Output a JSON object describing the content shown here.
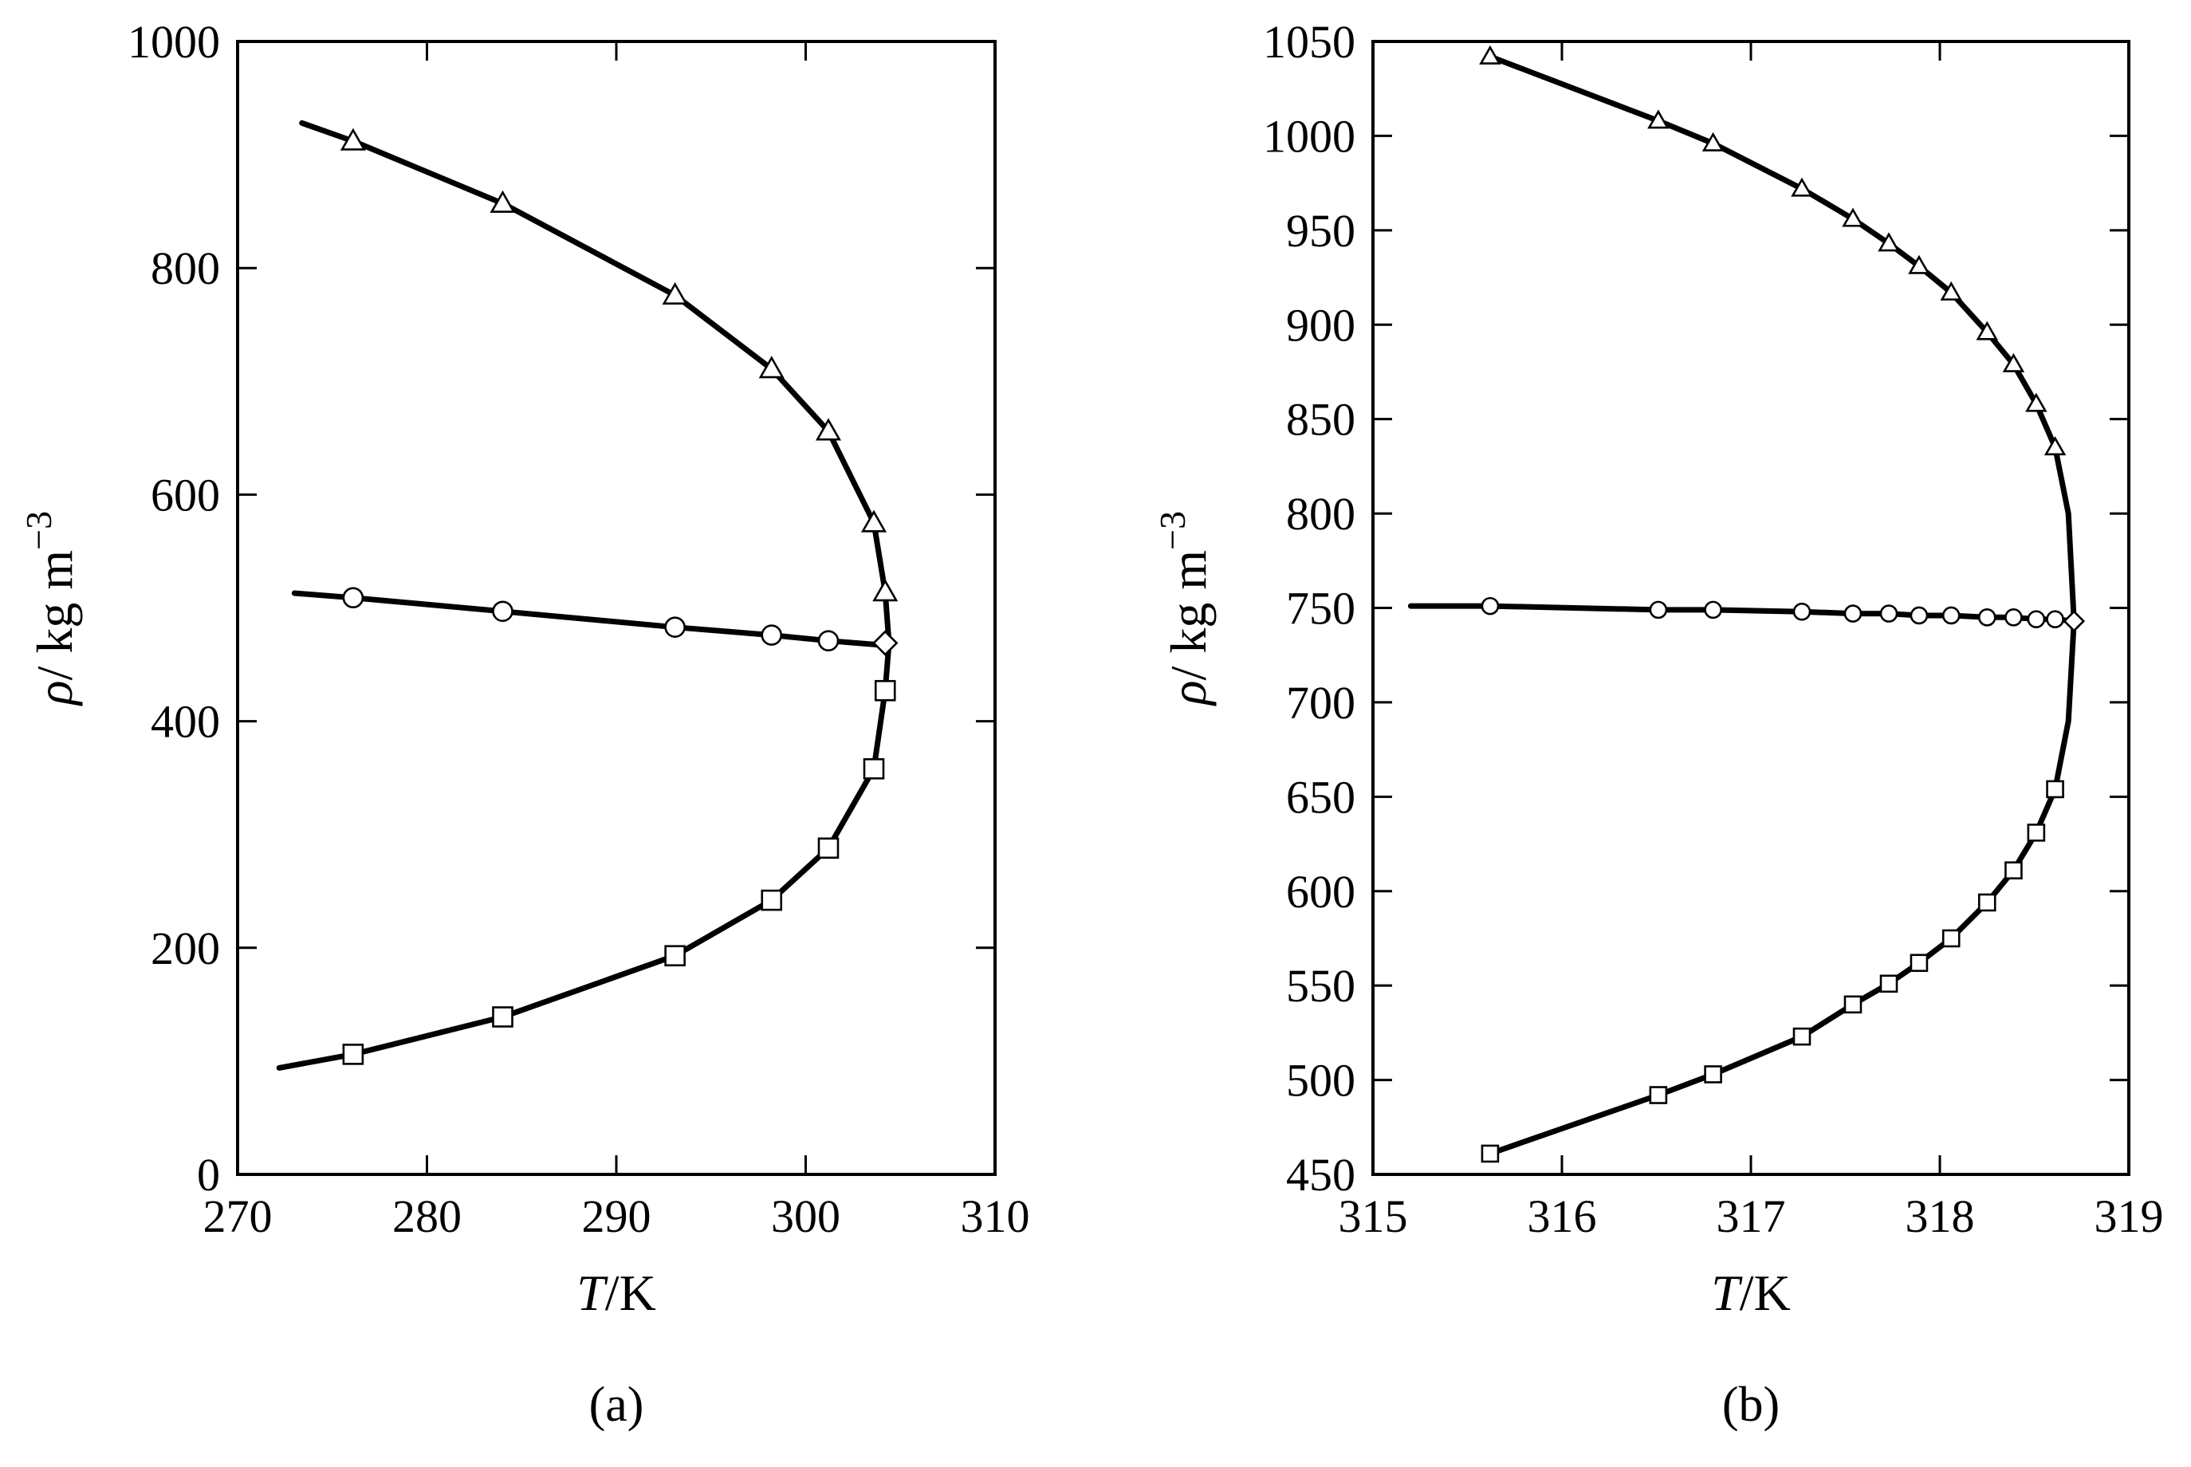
{
  "chart_data": [
    {
      "type": "line",
      "panel_label": "(a)",
      "xlabel_var": "T",
      "xlabel_unit": "K",
      "ylabel_var": "ρ",
      "ylabel_unit": "kg m",
      "ylabel_exp": "−3",
      "xlim": [
        270,
        310
      ],
      "ylim": [
        0,
        1000
      ],
      "xticks": [
        270,
        280,
        290,
        300,
        310
      ],
      "yticks": [
        0,
        200,
        400,
        600,
        800,
        1000
      ],
      "xtick_labels": [
        "270",
        "280",
        "290",
        "300",
        "310"
      ],
      "ytick_labels": [
        "0",
        "200",
        "400",
        "600",
        "800",
        "1000"
      ],
      "grid": false,
      "series": [
        {
          "marker": "triangle",
          "x": [
            276.1,
            284.0,
            293.1,
            298.2,
            301.2,
            303.6,
            304.2
          ],
          "y": [
            912,
            857,
            776,
            711,
            656,
            575,
            514
          ]
        },
        {
          "marker": "circle",
          "x": [
            276.1,
            284.0,
            293.1,
            298.2,
            301.2
          ],
          "y": [
            509,
            497,
            483,
            476,
            471
          ]
        },
        {
          "marker": "square",
          "x": [
            276.1,
            284.0,
            293.1,
            298.2,
            301.2,
            303.6,
            304.2
          ],
          "y": [
            106,
            139,
            193,
            242,
            288,
            358,
            427
          ]
        },
        {
          "marker": "diamond",
          "x": [
            304.2
          ],
          "y": [
            469
          ]
        }
      ],
      "curves": [
        {
          "x": [
            273.4,
            276.1,
            284.0,
            293.1,
            298.2,
            301.2,
            303.6,
            304.2,
            304.4,
            304.2,
            303.6,
            301.2,
            298.2,
            293.1,
            284.0,
            276.1,
            272.2
          ],
          "y": [
            928,
            912,
            857,
            776,
            711,
            656,
            575,
            514,
            469,
            427,
            358,
            288,
            242,
            193,
            139,
            106,
            94
          ]
        },
        {
          "x": [
            273.0,
            276.1,
            284.0,
            293.1,
            298.2,
            301.2,
            304.2
          ],
          "y": [
            513,
            509,
            497,
            483,
            476,
            471,
            467
          ]
        }
      ]
    },
    {
      "type": "line",
      "panel_label": "(b)",
      "xlabel_var": "T",
      "xlabel_unit": "K",
      "ylabel_var": "ρ",
      "ylabel_unit": "kg m",
      "ylabel_exp": "−3",
      "xlim": [
        315,
        319
      ],
      "ylim": [
        450,
        1050
      ],
      "xticks": [
        315,
        316,
        317,
        318,
        319
      ],
      "yticks": [
        450,
        500,
        550,
        600,
        650,
        700,
        750,
        800,
        850,
        900,
        950,
        1000,
        1050
      ],
      "xtick_labels": [
        "315",
        "316",
        "317",
        "318",
        "319"
      ],
      "ytick_labels": [
        "450",
        "500",
        "550",
        "600",
        "650",
        "700",
        "750",
        "800",
        "850",
        "900",
        "950",
        "1000",
        "1050"
      ],
      "grid": false,
      "series": [
        {
          "marker": "triangle",
          "x": [
            315.62,
            316.51,
            316.8,
            317.27,
            317.54,
            317.73,
            317.89,
            318.06,
            318.25,
            318.39,
            318.51,
            318.61
          ],
          "y": [
            1042,
            1008,
            996,
            972,
            956,
            943,
            931,
            917,
            896,
            879,
            858,
            835
          ]
        },
        {
          "marker": "circle",
          "x": [
            315.62,
            316.51,
            316.8,
            317.27,
            317.54,
            317.73,
            317.89,
            318.06,
            318.25,
            318.39,
            318.51,
            318.61
          ],
          "y": [
            751,
            749,
            749,
            748,
            747,
            747,
            746,
            746,
            745,
            745,
            744,
            744
          ]
        },
        {
          "marker": "square",
          "x": [
            315.62,
            316.51,
            316.8,
            317.27,
            317.54,
            317.73,
            317.89,
            318.06,
            318.25,
            318.39,
            318.51,
            318.61
          ],
          "y": [
            461,
            492,
            503,
            523,
            540,
            551,
            562,
            575,
            594,
            611,
            631,
            654
          ]
        },
        {
          "marker": "diamond",
          "x": [
            318.71
          ],
          "y": [
            743
          ]
        }
      ],
      "curves": [
        {
          "x": [
            315.62,
            316.51,
            316.8,
            317.27,
            317.54,
            317.73,
            317.89,
            318.06,
            318.25,
            318.39,
            318.51,
            318.61,
            318.68,
            318.71,
            318.68,
            318.61,
            318.51,
            318.39,
            318.25,
            318.06,
            317.89,
            317.73,
            317.54,
            317.27,
            316.8,
            316.51,
            315.62
          ],
          "y": [
            1042,
            1008,
            996,
            972,
            956,
            943,
            931,
            917,
            896,
            879,
            858,
            835,
            800,
            743,
            690,
            654,
            631,
            611,
            594,
            575,
            562,
            551,
            540,
            523,
            503,
            492,
            461
          ]
        },
        {
          "x": [
            315.2,
            315.62,
            316.51,
            316.8,
            317.27,
            317.54,
            317.73,
            317.89,
            318.06,
            318.25,
            318.39,
            318.51,
            318.61,
            318.71
          ],
          "y": [
            751,
            751,
            749,
            749,
            748,
            747,
            747,
            746,
            746,
            745,
            745,
            744,
            744,
            743
          ]
        }
      ]
    }
  ]
}
